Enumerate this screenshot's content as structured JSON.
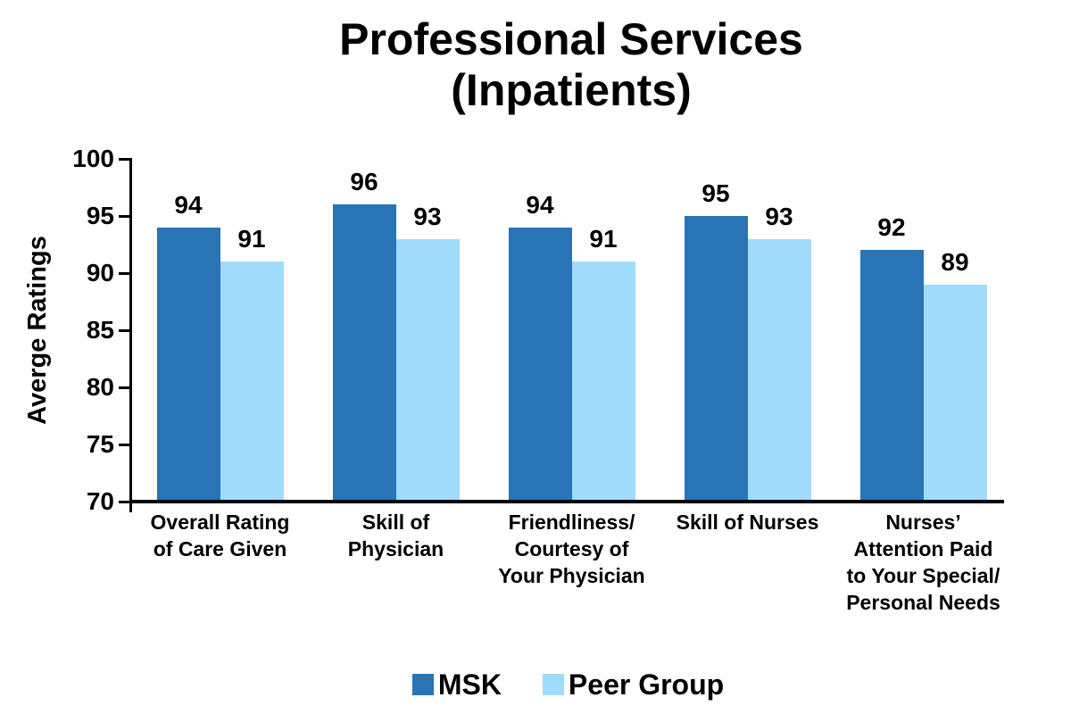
{
  "title": {
    "line1": "Professional Services",
    "line2": "(Inpatients)"
  },
  "chart_data": {
    "type": "bar",
    "title": "Professional Services (Inpatients)",
    "xlabel": "",
    "ylabel": "Averge Ratings",
    "ylim": [
      70,
      100
    ],
    "yticks": [
      70,
      75,
      80,
      85,
      90,
      95,
      100
    ],
    "grid": false,
    "legend_position": "bottom-center",
    "bar_value_labels_shown": true,
    "categories": [
      "Overall Rating of Care Given",
      "Skill of Physician",
      "Friendliness/Courtesy of Your Physician",
      "Skill of Nurses",
      "Nurses’ Attention Paid to Your Special/Personal Needs"
    ],
    "category_label_lines": [
      [
        "Overall Rating",
        "of Care Given"
      ],
      [
        "Skill of",
        "Physician"
      ],
      [
        "Friendliness/",
        "Courtesy of",
        "Your Physician"
      ],
      [
        "Skill of Nurses"
      ],
      [
        "Nurses’",
        "Attention Paid",
        "to Your Special/",
        "Personal Needs"
      ]
    ],
    "series": [
      {
        "name": "MSK",
        "color": "#2874B4",
        "values": [
          94,
          96,
          94,
          95,
          92
        ]
      },
      {
        "name": "Peer Group",
        "color": "#A0DBFB",
        "values": [
          91,
          93,
          91,
          93,
          89
        ]
      }
    ]
  },
  "colors": {
    "msk_bar": "#2874B4",
    "peer_group_bar": "#A0DBFB",
    "axis_and_text": "#000000",
    "background": "#FFFFFF"
  }
}
